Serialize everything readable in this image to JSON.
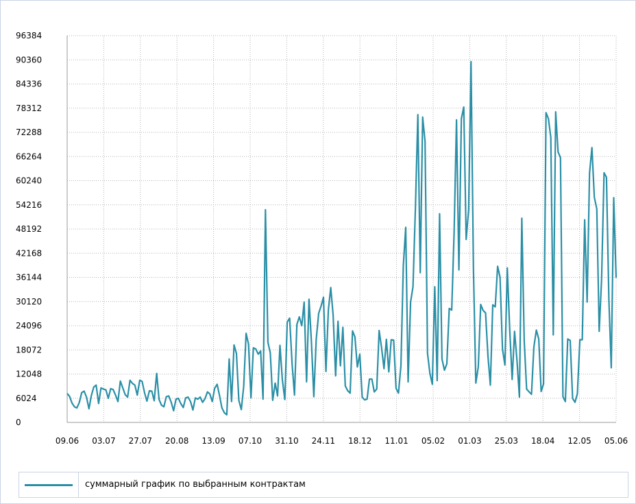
{
  "chart_data": {
    "type": "line",
    "title": "",
    "xlabel": "",
    "ylabel": "",
    "ylim": [
      0,
      96384
    ],
    "y_ticks": [
      "0",
      "6024",
      "12048",
      "18072",
      "24096",
      "30120",
      "36144",
      "42168",
      "48192",
      "54216",
      "60240",
      "66264",
      "72288",
      "78312",
      "84336",
      "90360",
      "96384"
    ],
    "x_ticks": [
      "09.06",
      "03.07",
      "27.07",
      "20.08",
      "13.09",
      "07.10",
      "31.10",
      "24.11",
      "18.12",
      "11.01",
      "05.02",
      "01.03",
      "25.03",
      "18.04",
      "12.05",
      "05.06"
    ],
    "grid": true,
    "legend_position": "bottom",
    "series": [
      {
        "name": "суммарный график по выбранным контрактам",
        "color": "#2a8fa6",
        "values": [
          7200,
          6500,
          4800,
          3900,
          3600,
          4900,
          7400,
          7800,
          6300,
          3400,
          6700,
          8800,
          9300,
          4700,
          8600,
          8300,
          8100,
          6000,
          8400,
          8200,
          6800,
          5200,
          10300,
          8600,
          6900,
          6300,
          10500,
          9700,
          9300,
          6800,
          10500,
          10200,
          7400,
          5300,
          7900,
          7800,
          5400,
          12200,
          5700,
          4300,
          3900,
          6400,
          6600,
          5100,
          2900,
          5800,
          6000,
          4700,
          3700,
          6100,
          6300,
          5200,
          3100,
          6100,
          5800,
          6300,
          5000,
          5900,
          7600,
          7100,
          5200,
          8500,
          9500,
          6700,
          3600,
          2400,
          1900,
          15800,
          5200,
          19300,
          17200,
          5500,
          3200,
          9000,
          22200,
          19500,
          6100,
          18600,
          18300,
          17000,
          17800,
          5800,
          53000,
          20000,
          17300,
          5500,
          9800,
          6600,
          19200,
          10600,
          5700,
          25000,
          26000,
          14600,
          6800,
          24400,
          26300,
          24100,
          30000,
          10100,
          30700,
          20100,
          6400,
          20700,
          27200,
          29000,
          31200,
          12700,
          28000,
          33600,
          26700,
          11600,
          25200,
          14100,
          23700,
          9100,
          7900,
          7300,
          22800,
          21300,
          13800,
          17000,
          6300,
          5600,
          5800,
          10800,
          10800,
          7600,
          8300,
          22900,
          18700,
          13400,
          20700,
          12600,
          20600,
          20500,
          8500,
          7300,
          14100,
          39100,
          48600,
          10100,
          30000,
          33800,
          53200,
          76700,
          37300,
          76100,
          70000,
          17200,
          12200,
          9500,
          33800,
          10400,
          52000,
          15800,
          13000,
          14600,
          28400,
          28000,
          47300,
          75400,
          38000,
          75700,
          78600,
          45600,
          53000,
          89900,
          38300,
          9800,
          13900,
          29400,
          27900,
          27300,
          16500,
          9300,
          29300,
          28800,
          38900,
          36200,
          18300,
          14300,
          38500,
          23300,
          10700,
          22700,
          15500,
          6300,
          50900,
          20300,
          8300,
          7600,
          7000,
          18800,
          23000,
          20800,
          7700,
          9600,
          77200,
          75700,
          71000,
          21800,
          77400,
          67400,
          66000,
          6400,
          5200,
          20800,
          20400,
          6000,
          5000,
          7200,
          20600,
          20600,
          50500,
          30000,
          62100,
          68500,
          56100,
          53200,
          22700,
          35700,
          62200,
          61100,
          30800,
          13600,
          56000,
          36000
        ]
      }
    ]
  }
}
